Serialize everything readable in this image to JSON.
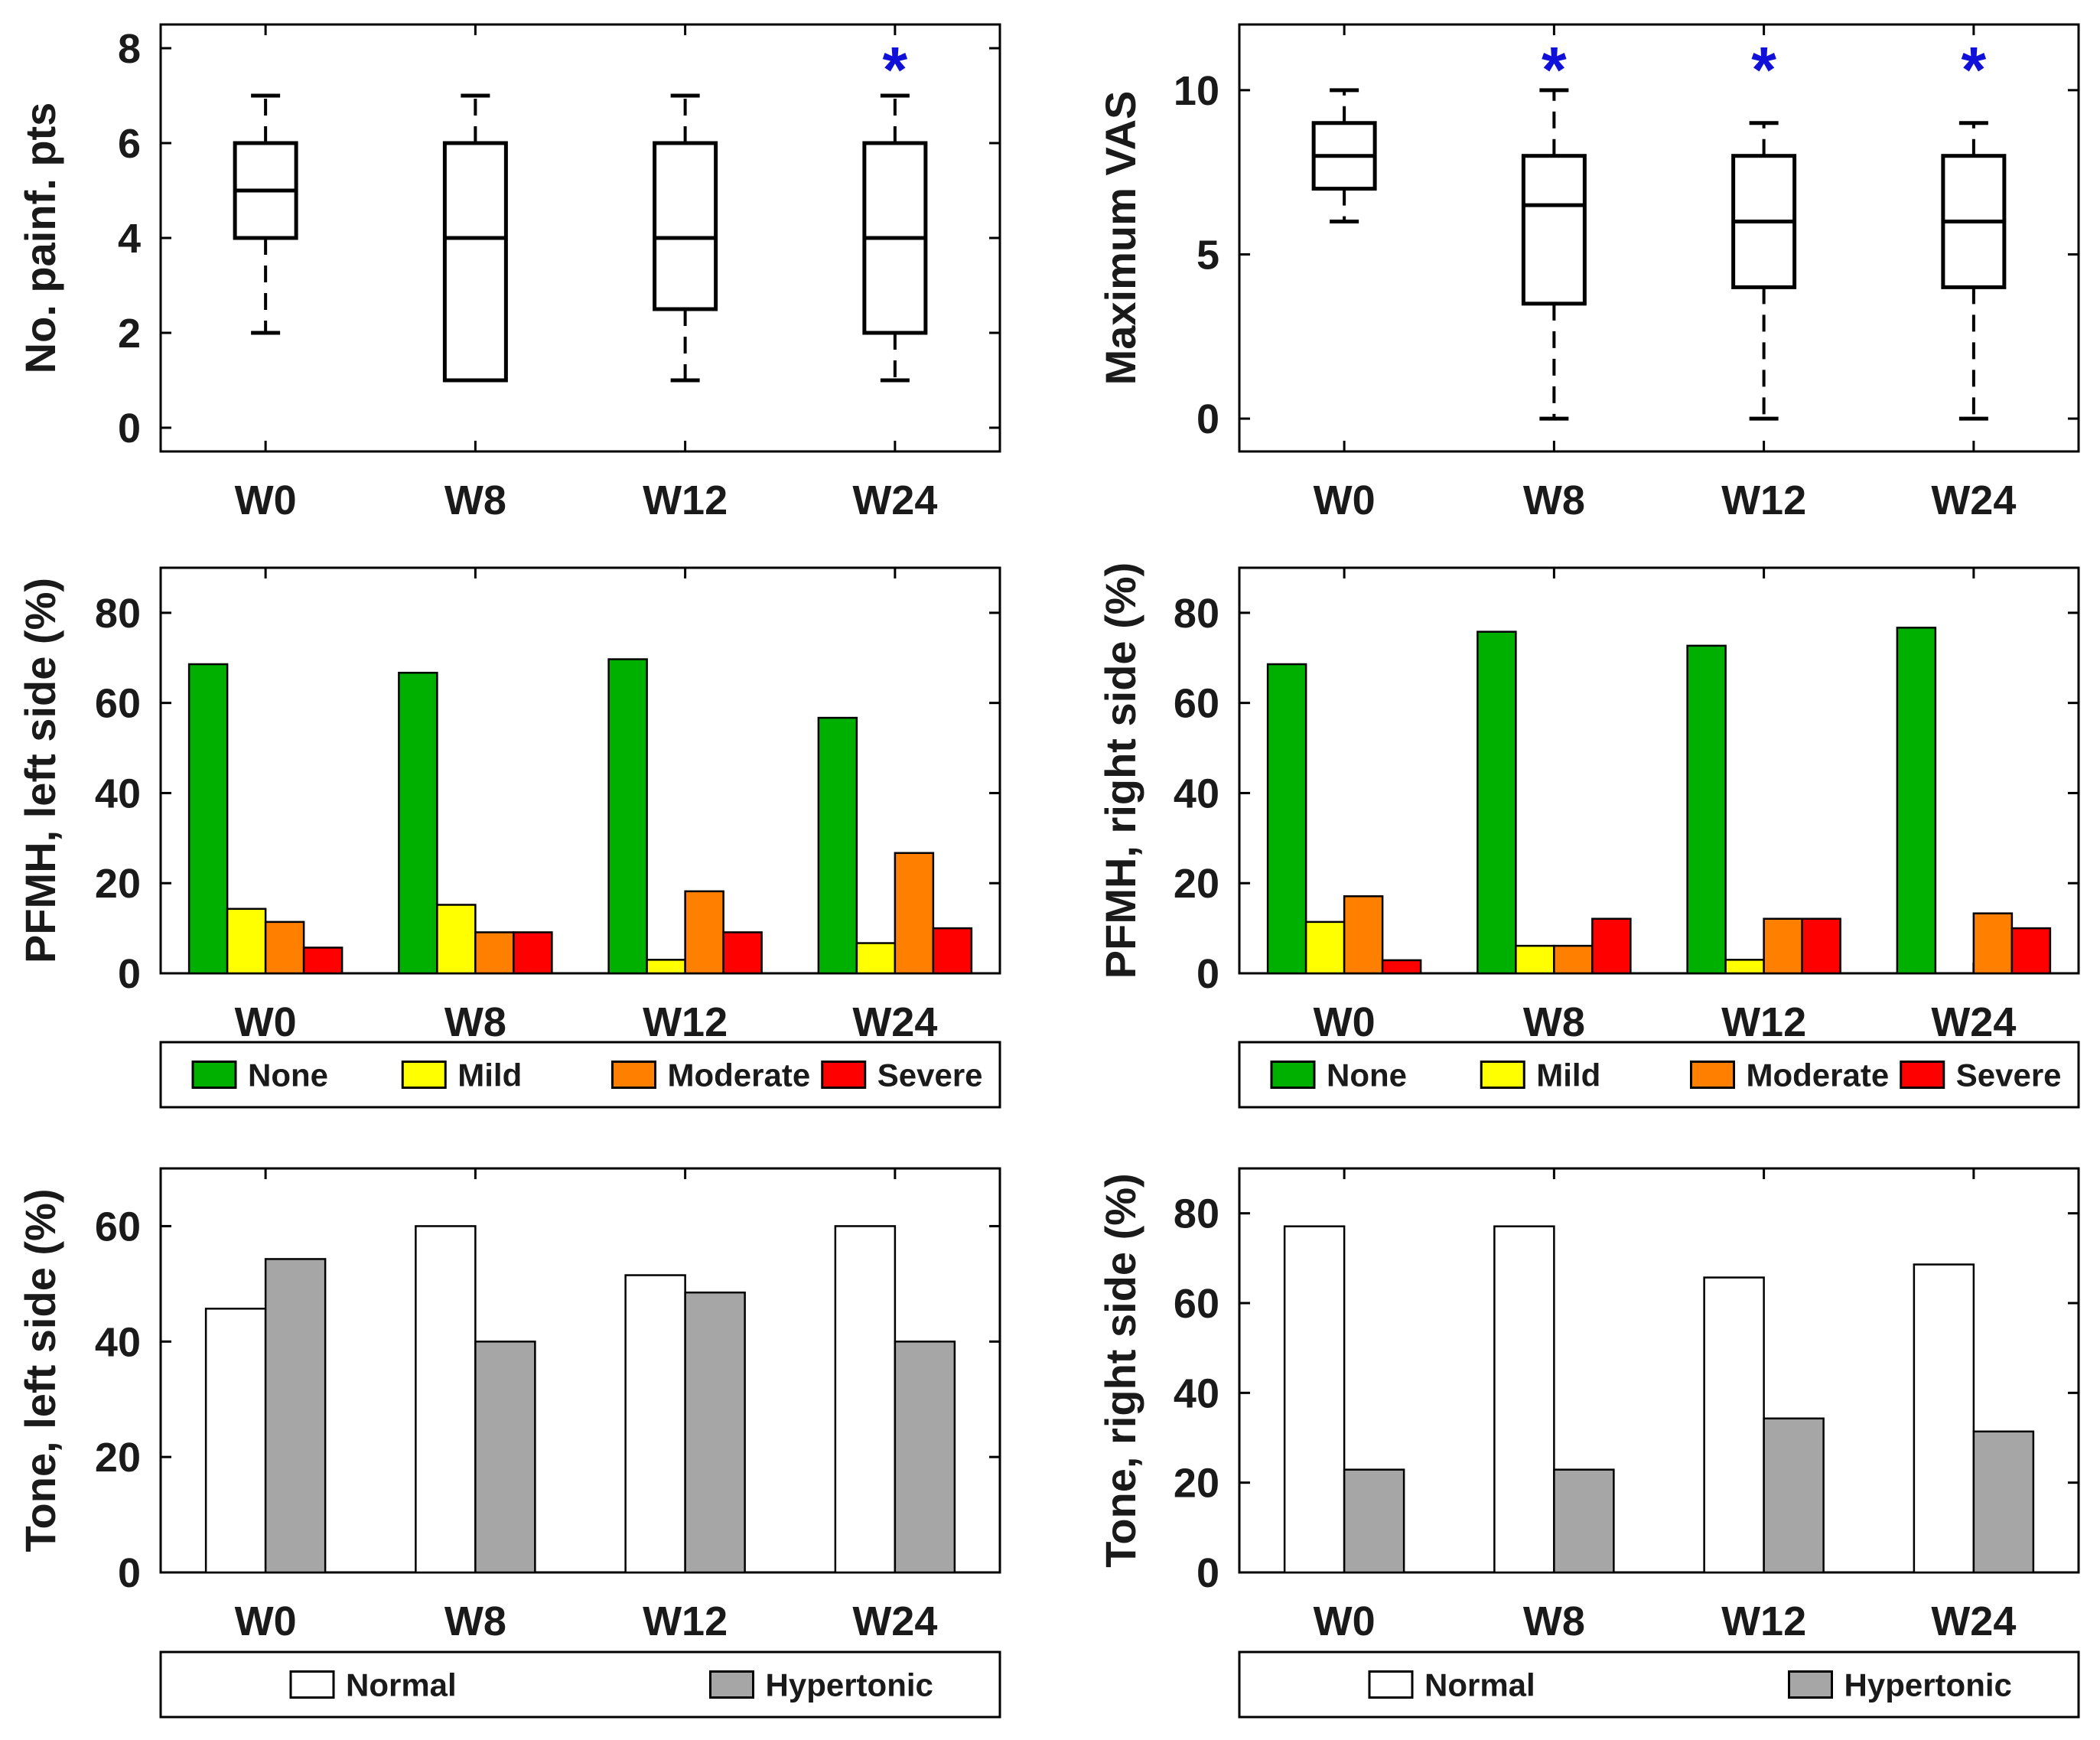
{
  "categories": [
    "W0",
    "W8",
    "W12",
    "W24"
  ],
  "colors": {
    "none": "#00b000",
    "mild": "#ffff00",
    "moderate": "#ff8000",
    "severe": "#ff0000",
    "normal": "#ffffff",
    "hypertonic": "#a6a6a6",
    "star": "#1010d8"
  },
  "chart_data": [
    {
      "id": "painful-points",
      "type": "box",
      "ylabel": "No. painf. pts",
      "ylim": [
        -0.5,
        8.5
      ],
      "yticks": [
        0,
        2,
        4,
        6,
        8
      ],
      "categories": [
        "W0",
        "W8",
        "W12",
        "W24"
      ],
      "boxes": [
        {
          "whisker_low": 2,
          "q1": 4,
          "median": 5,
          "q3": 6,
          "whisker_high": 7
        },
        {
          "whisker_low": 1,
          "q1": 1,
          "median": 4,
          "q3": 6,
          "whisker_high": 7
        },
        {
          "whisker_low": 1,
          "q1": 2.5,
          "median": 4,
          "q3": 6,
          "whisker_high": 7
        },
        {
          "whisker_low": 1,
          "q1": 2,
          "median": 4,
          "q3": 6,
          "whisker_high": 7
        }
      ],
      "significance": [
        "",
        "",
        "",
        "*"
      ]
    },
    {
      "id": "max-vas",
      "type": "box",
      "ylabel": "Maximum VAS",
      "ylim": [
        -1,
        12
      ],
      "yticks": [
        0,
        5,
        10
      ],
      "categories": [
        "W0",
        "W8",
        "W12",
        "W24"
      ],
      "boxes": [
        {
          "whisker_low": 6,
          "q1": 7,
          "median": 8,
          "q3": 9,
          "whisker_high": 10
        },
        {
          "whisker_low": 0,
          "q1": 3.5,
          "median": 6.5,
          "q3": 8,
          "whisker_high": 10
        },
        {
          "whisker_low": 0,
          "q1": 4,
          "median": 6,
          "q3": 8,
          "whisker_high": 9
        },
        {
          "whisker_low": 0,
          "q1": 4,
          "median": 6,
          "q3": 8,
          "whisker_high": 9
        }
      ],
      "significance": [
        "",
        "*",
        "*",
        "*"
      ]
    },
    {
      "id": "pfmh-left",
      "type": "bar",
      "ylabel": "PFMH, left side (%)",
      "ylim": [
        0,
        90
      ],
      "yticks": [
        0,
        20,
        40,
        60,
        80
      ],
      "categories": [
        "W0",
        "W8",
        "W12",
        "W24"
      ],
      "series": [
        {
          "name": "None",
          "color_key": "none",
          "values": [
            68.6,
            66.7,
            69.7,
            56.7
          ]
        },
        {
          "name": "Mild",
          "color_key": "mild",
          "values": [
            14.3,
            15.2,
            3.0,
            6.7
          ]
        },
        {
          "name": "Moderate",
          "color_key": "moderate",
          "values": [
            11.4,
            9.1,
            18.2,
            26.7
          ]
        },
        {
          "name": "Severe",
          "color_key": "severe",
          "values": [
            5.7,
            9.1,
            9.1,
            10.0
          ]
        }
      ],
      "legend": [
        "None",
        "Mild",
        "Moderate",
        "Severe"
      ]
    },
    {
      "id": "pfmh-right",
      "type": "bar",
      "ylabel": "PFMH, right side (%)",
      "ylim": [
        0,
        90
      ],
      "yticks": [
        0,
        20,
        40,
        60,
        80
      ],
      "categories": [
        "W0",
        "W8",
        "W12",
        "W24"
      ],
      "series": [
        {
          "name": "None",
          "color_key": "none",
          "values": [
            68.6,
            75.8,
            72.7,
            76.7
          ]
        },
        {
          "name": "Mild",
          "color_key": "mild",
          "values": [
            11.4,
            6.1,
            3.0,
            0
          ]
        },
        {
          "name": "Moderate",
          "color_key": "moderate",
          "values": [
            17.1,
            6.1,
            12.1,
            13.3
          ]
        },
        {
          "name": "Severe",
          "color_key": "severe",
          "values": [
            2.9,
            12.1,
            12.1,
            10.0
          ]
        }
      ],
      "legend": [
        "None",
        "Mild",
        "Moderate",
        "Severe"
      ]
    },
    {
      "id": "tone-left",
      "type": "bar",
      "ylabel": "Tone, left side (%)",
      "ylim": [
        0,
        70
      ],
      "yticks": [
        0,
        20,
        40,
        60
      ],
      "categories": [
        "W0",
        "W8",
        "W12",
        "W24"
      ],
      "series": [
        {
          "name": "Normal",
          "color_key": "normal",
          "values": [
            45.7,
            60.0,
            51.5,
            60.0
          ]
        },
        {
          "name": "Hypertonic",
          "color_key": "hypertonic",
          "values": [
            54.3,
            40.0,
            48.5,
            40.0
          ]
        }
      ],
      "legend": [
        "Normal",
        "Hypertonic"
      ]
    },
    {
      "id": "tone-right",
      "type": "bar",
      "ylabel": "Tone, right side (%)",
      "ylim": [
        0,
        90
      ],
      "yticks": [
        0,
        20,
        40,
        60,
        80
      ],
      "categories": [
        "W0",
        "W8",
        "W12",
        "W24"
      ],
      "series": [
        {
          "name": "Normal",
          "color_key": "normal",
          "values": [
            77.1,
            77.1,
            65.7,
            68.6
          ]
        },
        {
          "name": "Hypertonic",
          "color_key": "hypertonic",
          "values": [
            22.9,
            22.9,
            34.3,
            31.4
          ]
        }
      ],
      "legend": [
        "Normal",
        "Hypertonic"
      ]
    }
  ]
}
